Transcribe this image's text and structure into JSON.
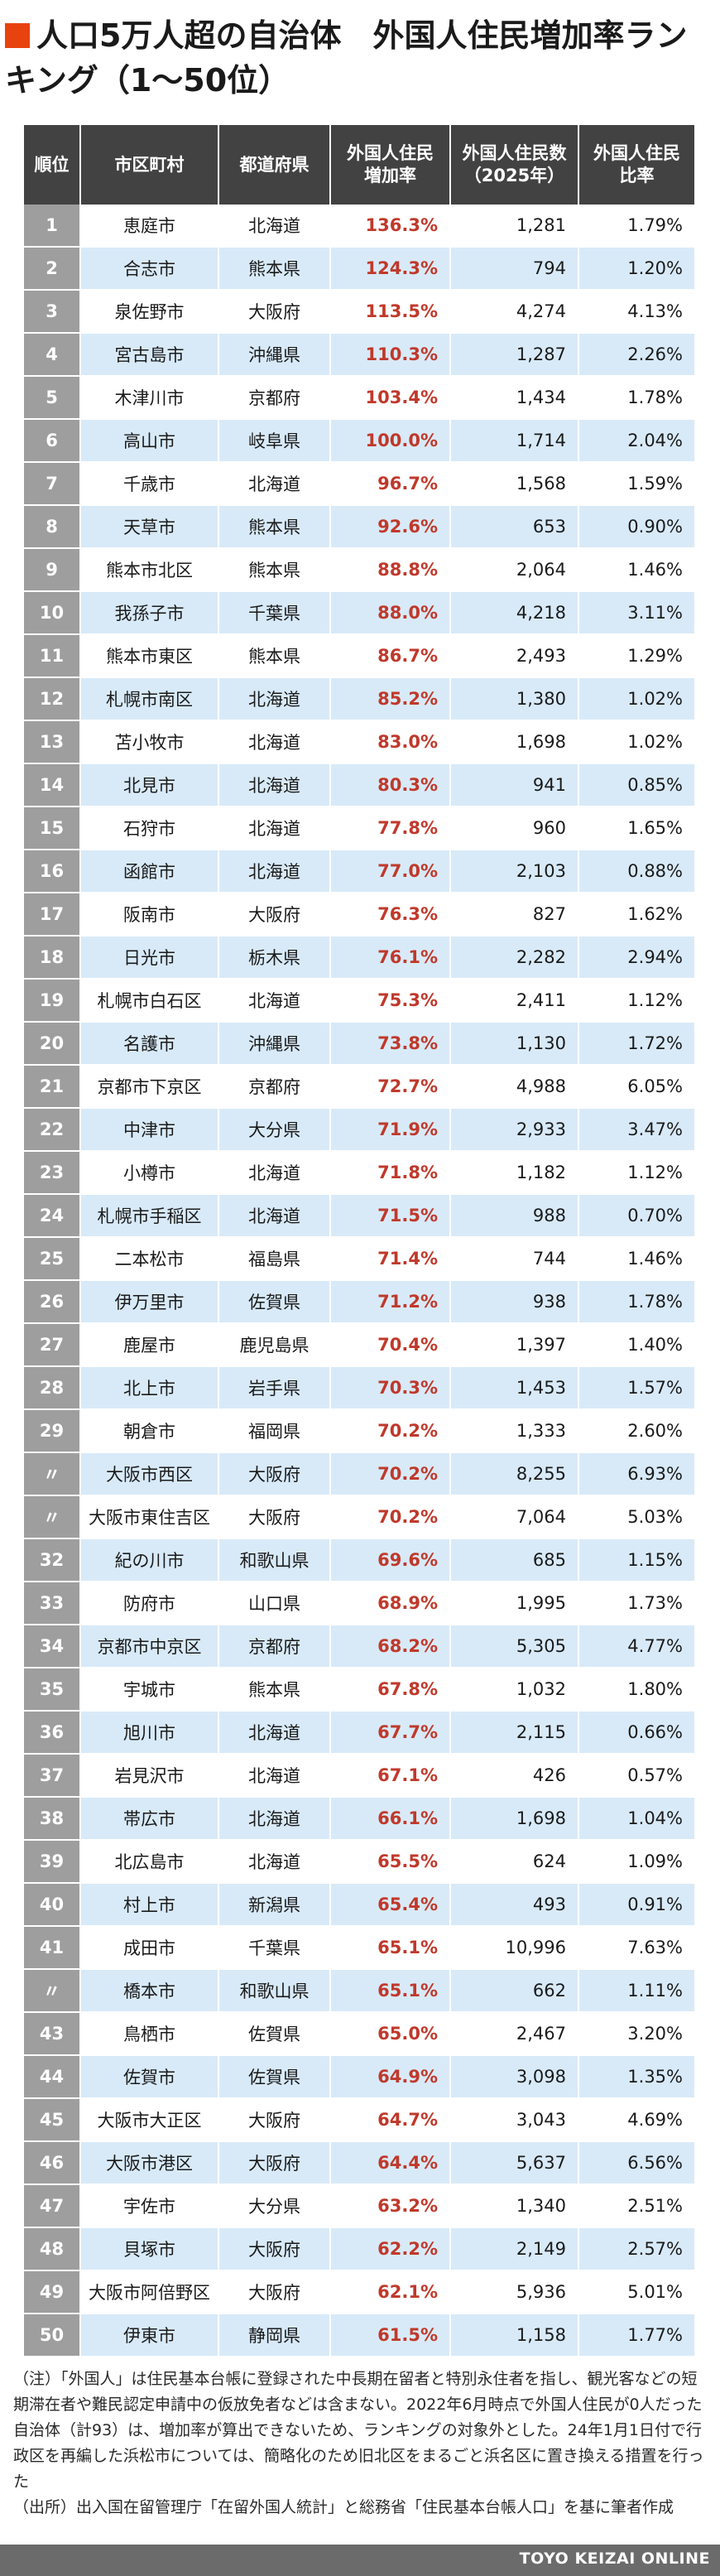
{
  "title": "人口5万人超の自治体　外国人住民増加率ランキング（1〜50位）",
  "colors": {
    "accent": "#e8420f",
    "header_bg": "#424242",
    "rank_bg": "#9e9e9e",
    "stripe": "#d8eaf8",
    "rate_text": "#c0392b"
  },
  "table": {
    "headers": [
      "順位",
      "市区町村",
      "都道府県",
      "外国人住民\n増加率",
      "外国人住民数\n（2025年）",
      "外国人住民\n比率"
    ],
    "rows": [
      [
        "1",
        "恵庭市",
        "北海道",
        "136.3%",
        "1,281",
        "1.79%"
      ],
      [
        "2",
        "合志市",
        "熊本県",
        "124.3%",
        "794",
        "1.20%"
      ],
      [
        "3",
        "泉佐野市",
        "大阪府",
        "113.5%",
        "4,274",
        "4.13%"
      ],
      [
        "4",
        "宮古島市",
        "沖縄県",
        "110.3%",
        "1,287",
        "2.26%"
      ],
      [
        "5",
        "木津川市",
        "京都府",
        "103.4%",
        "1,434",
        "1.78%"
      ],
      [
        "6",
        "高山市",
        "岐阜県",
        "100.0%",
        "1,714",
        "2.04%"
      ],
      [
        "7",
        "千歳市",
        "北海道",
        "96.7%",
        "1,568",
        "1.59%"
      ],
      [
        "8",
        "天草市",
        "熊本県",
        "92.6%",
        "653",
        "0.90%"
      ],
      [
        "9",
        "熊本市北区",
        "熊本県",
        "88.8%",
        "2,064",
        "1.46%"
      ],
      [
        "10",
        "我孫子市",
        "千葉県",
        "88.0%",
        "4,218",
        "3.11%"
      ],
      [
        "11",
        "熊本市東区",
        "熊本県",
        "86.7%",
        "2,493",
        "1.29%"
      ],
      [
        "12",
        "札幌市南区",
        "北海道",
        "85.2%",
        "1,380",
        "1.02%"
      ],
      [
        "13",
        "苫小牧市",
        "北海道",
        "83.0%",
        "1,698",
        "1.02%"
      ],
      [
        "14",
        "北見市",
        "北海道",
        "80.3%",
        "941",
        "0.85%"
      ],
      [
        "15",
        "石狩市",
        "北海道",
        "77.8%",
        "960",
        "1.65%"
      ],
      [
        "16",
        "函館市",
        "北海道",
        "77.0%",
        "2,103",
        "0.88%"
      ],
      [
        "17",
        "阪南市",
        "大阪府",
        "76.3%",
        "827",
        "1.62%"
      ],
      [
        "18",
        "日光市",
        "栃木県",
        "76.1%",
        "2,282",
        "2.94%"
      ],
      [
        "19",
        "札幌市白石区",
        "北海道",
        "75.3%",
        "2,411",
        "1.12%"
      ],
      [
        "20",
        "名護市",
        "沖縄県",
        "73.8%",
        "1,130",
        "1.72%"
      ],
      [
        "21",
        "京都市下京区",
        "京都府",
        "72.7%",
        "4,988",
        "6.05%"
      ],
      [
        "22",
        "中津市",
        "大分県",
        "71.9%",
        "2,933",
        "3.47%"
      ],
      [
        "23",
        "小樽市",
        "北海道",
        "71.8%",
        "1,182",
        "1.12%"
      ],
      [
        "24",
        "札幌市手稲区",
        "北海道",
        "71.5%",
        "988",
        "0.70%"
      ],
      [
        "25",
        "二本松市",
        "福島県",
        "71.4%",
        "744",
        "1.46%"
      ],
      [
        "26",
        "伊万里市",
        "佐賀県",
        "71.2%",
        "938",
        "1.78%"
      ],
      [
        "27",
        "鹿屋市",
        "鹿児島県",
        "70.4%",
        "1,397",
        "1.40%"
      ],
      [
        "28",
        "北上市",
        "岩手県",
        "70.3%",
        "1,453",
        "1.57%"
      ],
      [
        "29",
        "朝倉市",
        "福岡県",
        "70.2%",
        "1,333",
        "2.60%"
      ],
      [
        "〃",
        "大阪市西区",
        "大阪府",
        "70.2%",
        "8,255",
        "6.93%"
      ],
      [
        "〃",
        "大阪市東住吉区",
        "大阪府",
        "70.2%",
        "7,064",
        "5.03%"
      ],
      [
        "32",
        "紀の川市",
        "和歌山県",
        "69.6%",
        "685",
        "1.15%"
      ],
      [
        "33",
        "防府市",
        "山口県",
        "68.9%",
        "1,995",
        "1.73%"
      ],
      [
        "34",
        "京都市中京区",
        "京都府",
        "68.2%",
        "5,305",
        "4.77%"
      ],
      [
        "35",
        "宇城市",
        "熊本県",
        "67.8%",
        "1,032",
        "1.80%"
      ],
      [
        "36",
        "旭川市",
        "北海道",
        "67.7%",
        "2,115",
        "0.66%"
      ],
      [
        "37",
        "岩見沢市",
        "北海道",
        "67.1%",
        "426",
        "0.57%"
      ],
      [
        "38",
        "帯広市",
        "北海道",
        "66.1%",
        "1,698",
        "1.04%"
      ],
      [
        "39",
        "北広島市",
        "北海道",
        "65.5%",
        "624",
        "1.09%"
      ],
      [
        "40",
        "村上市",
        "新潟県",
        "65.4%",
        "493",
        "0.91%"
      ],
      [
        "41",
        "成田市",
        "千葉県",
        "65.1%",
        "10,996",
        "7.63%"
      ],
      [
        "〃",
        "橋本市",
        "和歌山県",
        "65.1%",
        "662",
        "1.11%"
      ],
      [
        "43",
        "鳥栖市",
        "佐賀県",
        "65.0%",
        "2,467",
        "3.20%"
      ],
      [
        "44",
        "佐賀市",
        "佐賀県",
        "64.9%",
        "3,098",
        "1.35%"
      ],
      [
        "45",
        "大阪市大正区",
        "大阪府",
        "64.7%",
        "3,043",
        "4.69%"
      ],
      [
        "46",
        "大阪市港区",
        "大阪府",
        "64.4%",
        "5,637",
        "6.56%"
      ],
      [
        "47",
        "宇佐市",
        "大分県",
        "63.2%",
        "1,340",
        "2.51%"
      ],
      [
        "48",
        "貝塚市",
        "大阪府",
        "62.2%",
        "2,149",
        "2.57%"
      ],
      [
        "49",
        "大阪市阿倍野区",
        "大阪府",
        "62.1%",
        "5,936",
        "5.01%"
      ],
      [
        "50",
        "伊東市",
        "静岡県",
        "61.5%",
        "1,158",
        "1.77%"
      ]
    ]
  },
  "note": "（注）「外国人」は住民基本台帳に登録された中長期在留者と特別永住者を指し、観光客などの短期滞在者や難民認定申請中の仮放免者などは含まない。2022年6月時点で外国人住民が0人だった自治体（計93）は、増加率が算出できないため、ランキングの対象外とした。24年1月1日付で行政区を再編した浜松市については、簡略化のため旧北区をまるごと浜名区に置き換える措置を行った\n（出所）出入国在留管理庁「在留外国人統計」と総務省「住民基本台帳人口」を基に筆者作成",
  "footer": {
    "brand": "TOYO KEIZAI ONLINE"
  }
}
